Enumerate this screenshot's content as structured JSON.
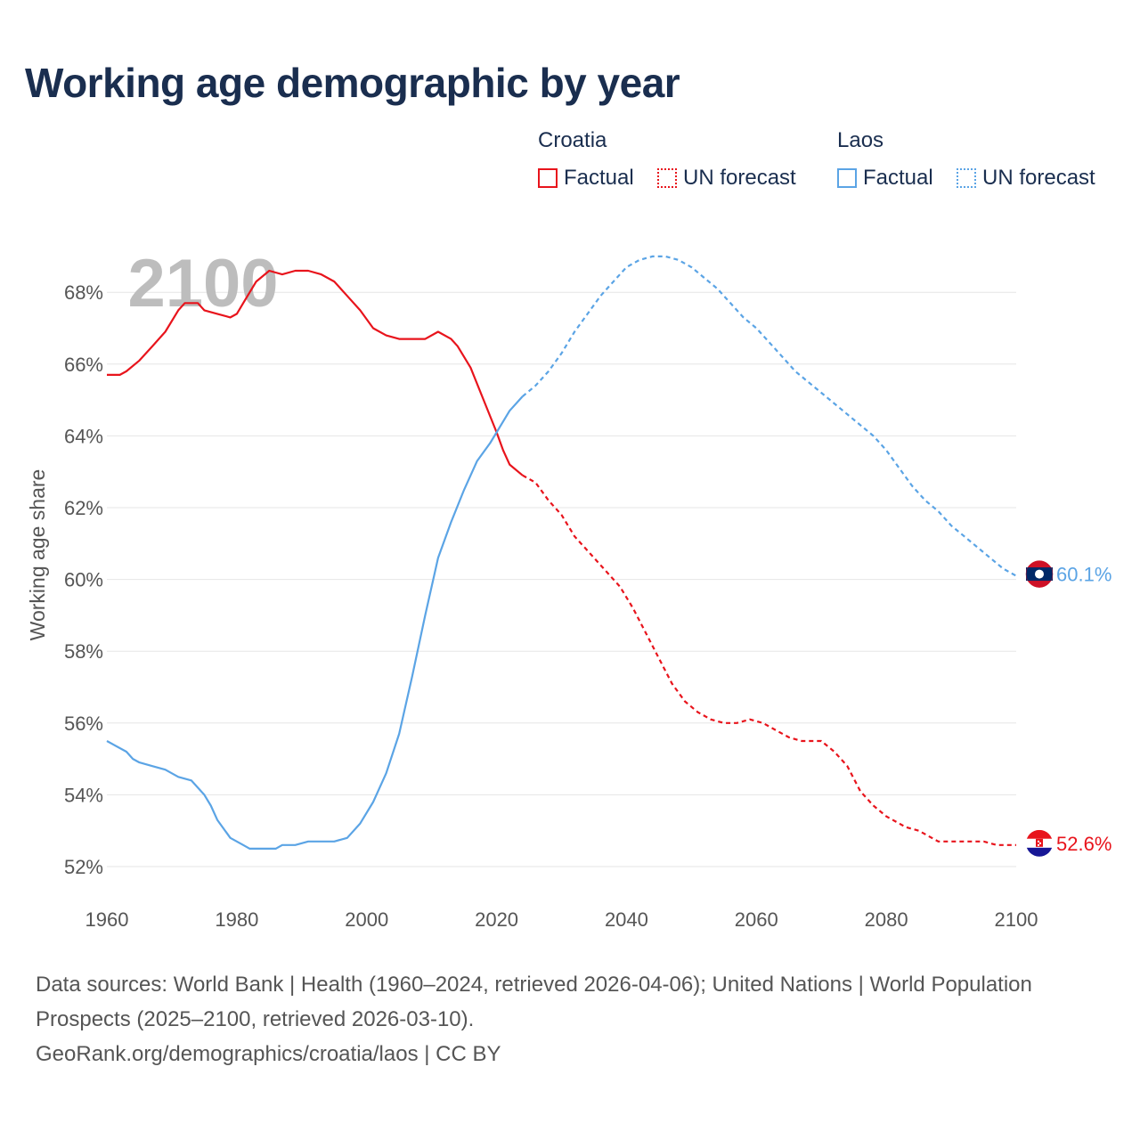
{
  "title": "Working age demographic by year",
  "legend": {
    "groups": [
      {
        "name": "Croatia",
        "color": "#e8141c",
        "factual_label": "Factual",
        "forecast_label": "UN forecast"
      },
      {
        "name": "Laos",
        "color": "#5ba4e5",
        "factual_label": "Factual",
        "forecast_label": "UN forecast"
      }
    ]
  },
  "year_watermark": "2100",
  "footer": {
    "sources": "Data sources: World Bank | Health (1960–2024, retrieved 2026-04-06); United Nations | World Population Prospects (2025–2100, retrieved 2026-03-10).",
    "link": "GeoRank.org/demographics/croatia/laos | CC BY"
  },
  "colors": {
    "croatia": "#e8141c",
    "laos": "#5ba4e5",
    "title": "#1a2e4f",
    "grid": "#e6e6e6",
    "watermark": "#bdbdbd"
  },
  "chart_data": {
    "type": "line",
    "title": "Working age demographic by year",
    "xlabel": "",
    "ylabel": "Working age share",
    "xlim": [
      1960,
      2100
    ],
    "ylim": [
      51.8,
      69.5
    ],
    "x_ticks": [
      1960,
      1980,
      2000,
      2020,
      2040,
      2060,
      2080,
      2100
    ],
    "y_ticks": [
      52,
      54,
      56,
      58,
      60,
      62,
      64,
      66,
      68
    ],
    "y_tick_labels": [
      "52%",
      "54%",
      "56%",
      "58%",
      "60%",
      "62%",
      "64%",
      "66%",
      "68%"
    ],
    "factual_end_year": 2024,
    "series": [
      {
        "name": "Croatia",
        "end_label": "52.6%",
        "points": [
          [
            1960,
            65.7
          ],
          [
            1962,
            65.7
          ],
          [
            1963,
            65.8
          ],
          [
            1965,
            66.1
          ],
          [
            1967,
            66.5
          ],
          [
            1969,
            66.9
          ],
          [
            1971,
            67.5
          ],
          [
            1972,
            67.7
          ],
          [
            1974,
            67.7
          ],
          [
            1975,
            67.5
          ],
          [
            1977,
            67.4
          ],
          [
            1979,
            67.3
          ],
          [
            1980,
            67.4
          ],
          [
            1981,
            67.7
          ],
          [
            1983,
            68.3
          ],
          [
            1985,
            68.6
          ],
          [
            1987,
            68.5
          ],
          [
            1989,
            68.6
          ],
          [
            1991,
            68.6
          ],
          [
            1993,
            68.5
          ],
          [
            1995,
            68.3
          ],
          [
            1997,
            67.9
          ],
          [
            1999,
            67.5
          ],
          [
            2001,
            67.0
          ],
          [
            2003,
            66.8
          ],
          [
            2005,
            66.7
          ],
          [
            2007,
            66.7
          ],
          [
            2009,
            66.7
          ],
          [
            2011,
            66.9
          ],
          [
            2013,
            66.7
          ],
          [
            2014,
            66.5
          ],
          [
            2016,
            65.9
          ],
          [
            2018,
            65.0
          ],
          [
            2020,
            64.1
          ],
          [
            2021,
            63.6
          ],
          [
            2022,
            63.2
          ],
          [
            2024,
            62.9
          ],
          [
            2026,
            62.7
          ],
          [
            2028,
            62.2
          ],
          [
            2030,
            61.8
          ],
          [
            2032,
            61.2
          ],
          [
            2035,
            60.6
          ],
          [
            2037,
            60.2
          ],
          [
            2039,
            59.8
          ],
          [
            2041,
            59.2
          ],
          [
            2043,
            58.5
          ],
          [
            2045,
            57.8
          ],
          [
            2047,
            57.1
          ],
          [
            2049,
            56.6
          ],
          [
            2051,
            56.3
          ],
          [
            2053,
            56.1
          ],
          [
            2055,
            56.0
          ],
          [
            2057,
            56.0
          ],
          [
            2059,
            56.1
          ],
          [
            2061,
            56.0
          ],
          [
            2063,
            55.8
          ],
          [
            2065,
            55.6
          ],
          [
            2067,
            55.5
          ],
          [
            2070,
            55.5
          ],
          [
            2072,
            55.2
          ],
          [
            2074,
            54.8
          ],
          [
            2076,
            54.1
          ],
          [
            2078,
            53.7
          ],
          [
            2080,
            53.4
          ],
          [
            2083,
            53.1
          ],
          [
            2085,
            53.0
          ],
          [
            2088,
            52.7
          ],
          [
            2092,
            52.7
          ],
          [
            2095,
            52.7
          ],
          [
            2097,
            52.6
          ],
          [
            2100,
            52.6
          ]
        ]
      },
      {
        "name": "Laos",
        "end_label": "60.1%",
        "points": [
          [
            1960,
            55.5
          ],
          [
            1963,
            55.2
          ],
          [
            1964,
            55.0
          ],
          [
            1965,
            54.9
          ],
          [
            1967,
            54.8
          ],
          [
            1969,
            54.7
          ],
          [
            1971,
            54.5
          ],
          [
            1973,
            54.4
          ],
          [
            1975,
            54.0
          ],
          [
            1976,
            53.7
          ],
          [
            1977,
            53.3
          ],
          [
            1979,
            52.8
          ],
          [
            1981,
            52.6
          ],
          [
            1982,
            52.5
          ],
          [
            1984,
            52.5
          ],
          [
            1986,
            52.5
          ],
          [
            1987,
            52.6
          ],
          [
            1989,
            52.6
          ],
          [
            1991,
            52.7
          ],
          [
            1993,
            52.7
          ],
          [
            1995,
            52.7
          ],
          [
            1997,
            52.8
          ],
          [
            1999,
            53.2
          ],
          [
            2001,
            53.8
          ],
          [
            2003,
            54.6
          ],
          [
            2005,
            55.7
          ],
          [
            2007,
            57.3
          ],
          [
            2009,
            59.0
          ],
          [
            2011,
            60.6
          ],
          [
            2013,
            61.6
          ],
          [
            2015,
            62.5
          ],
          [
            2017,
            63.3
          ],
          [
            2019,
            63.8
          ],
          [
            2021,
            64.4
          ],
          [
            2022,
            64.7
          ],
          [
            2024,
            65.1
          ],
          [
            2026,
            65.4
          ],
          [
            2028,
            65.8
          ],
          [
            2030,
            66.3
          ],
          [
            2032,
            66.9
          ],
          [
            2034,
            67.4
          ],
          [
            2036,
            67.9
          ],
          [
            2038,
            68.3
          ],
          [
            2040,
            68.7
          ],
          [
            2042,
            68.9
          ],
          [
            2044,
            69.0
          ],
          [
            2046,
            69.0
          ],
          [
            2048,
            68.9
          ],
          [
            2050,
            68.7
          ],
          [
            2052,
            68.4
          ],
          [
            2054,
            68.1
          ],
          [
            2056,
            67.7
          ],
          [
            2058,
            67.3
          ],
          [
            2060,
            67.0
          ],
          [
            2062,
            66.6
          ],
          [
            2064,
            66.2
          ],
          [
            2066,
            65.8
          ],
          [
            2068,
            65.5
          ],
          [
            2070,
            65.2
          ],
          [
            2072,
            64.9
          ],
          [
            2074,
            64.6
          ],
          [
            2076,
            64.3
          ],
          [
            2078,
            64.0
          ],
          [
            2080,
            63.6
          ],
          [
            2082,
            63.1
          ],
          [
            2084,
            62.6
          ],
          [
            2086,
            62.2
          ],
          [
            2088,
            61.9
          ],
          [
            2090,
            61.5
          ],
          [
            2092,
            61.2
          ],
          [
            2094,
            60.9
          ],
          [
            2096,
            60.6
          ],
          [
            2098,
            60.3
          ],
          [
            2100,
            60.1
          ]
        ]
      }
    ]
  }
}
